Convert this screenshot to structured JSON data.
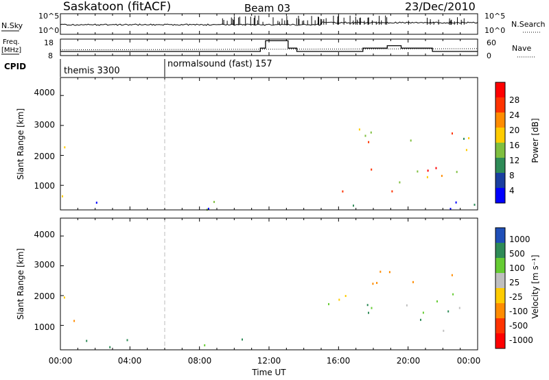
{
  "header": {
    "station": "Saskatoon (fitACF)",
    "beam": "Beam 03",
    "date": "23/Dec/2010"
  },
  "noise_panel": {
    "left_label": "N.Sky",
    "left_ticks": [
      "10^5",
      "10^0"
    ],
    "right_ticks": [
      "10^5",
      "10^0"
    ],
    "right_label": "N.Search"
  },
  "freq_panel": {
    "left_label_line1": "Freq.",
    "left_label_line2": "[MHz]",
    "left_ticks": [
      "18",
      "8"
    ],
    "right_ticks": [
      "60",
      "0"
    ],
    "right_label": "Nave"
  },
  "cpid": {
    "label": "CPID",
    "segments": [
      {
        "name": "themis 3300",
        "start_hour": 0
      },
      {
        "name": "normalsound (fast) 157",
        "start_hour": 6
      }
    ]
  },
  "power_panel": {
    "ylabel": "Slant Range [km]",
    "yticks": [
      "4000",
      "3000",
      "2000",
      "1000"
    ],
    "colorbar_label": "Power [dB]",
    "colorbar_ticks": [
      "28",
      "24",
      "20",
      "16",
      "12",
      "8",
      "4"
    ],
    "colors": [
      "#0000ff",
      "#1a3fa0",
      "#2e8b57",
      "#7fbf3f",
      "#ffcc00",
      "#ff8c00",
      "#ff3300",
      "#ff0000"
    ]
  },
  "velocity_panel": {
    "ylabel": "Slant Range [km]",
    "yticks": [
      "4000",
      "3000",
      "2000",
      "1000"
    ],
    "colorbar_label": "Velocity [m s⁻¹]",
    "colorbar_ticks": [
      "1000",
      "500",
      "100",
      "25",
      "-25",
      "-100",
      "-500",
      "-1000"
    ],
    "colors": [
      "#1f4fb8",
      "#2e8b57",
      "#66cc33",
      "#bfbfbf",
      "#ffcc00",
      "#ff8c00",
      "#ff3300",
      "#ff0000"
    ]
  },
  "xaxis": {
    "ticks": [
      "00:00",
      "04:00",
      "08:00",
      "12:00",
      "16:00",
      "20:00",
      "00:00"
    ],
    "label": "Time UT"
  },
  "chart_data": {
    "type": "heatmap",
    "x_unit": "hour UT",
    "xlim": [
      0,
      24
    ],
    "range_ylim_km": [
      180,
      4600
    ],
    "power_clim_db": [
      0,
      32
    ],
    "velocity_clim_ms": [
      -1000,
      1000
    ],
    "freq_mhz": [
      {
        "start": 0,
        "end": 6,
        "value": 10.5
      },
      {
        "start": 6,
        "end": 11.5,
        "value": 10.5
      },
      {
        "start": 11.5,
        "end": 11.8,
        "value": 12.5
      },
      {
        "start": 11.8,
        "end": 13.1,
        "value": 17
      },
      {
        "start": 13.1,
        "end": 13.6,
        "value": 12.5
      },
      {
        "start": 13.6,
        "end": 17.4,
        "value": 10.5
      },
      {
        "start": 17.4,
        "end": 18.8,
        "value": 12.5
      },
      {
        "start": 18.8,
        "end": 19.6,
        "value": 14
      },
      {
        "start": 19.6,
        "end": 21.4,
        "value": 12.5
      },
      {
        "start": 21.4,
        "end": 24,
        "value": 10.5
      }
    ],
    "power_echo_regions": [
      {
        "t_start": 0,
        "t_end": 1,
        "range_start": 600,
        "range_end": 2600,
        "db": 24
      },
      {
        "t_start": 0,
        "t_end": 11.6,
        "range_start": 200,
        "range_end": 500,
        "db": 8
      },
      {
        "t_start": 10.6,
        "t_end": 11.6,
        "range_start": 650,
        "range_end": 900,
        "db": 16
      },
      {
        "t_start": 15.2,
        "t_end": 24,
        "range_start": 800,
        "range_end": 1800,
        "db": 24
      },
      {
        "t_start": 15.6,
        "t_end": 23.6,
        "range_start": 1900,
        "range_end": 2900,
        "db": 20
      },
      {
        "t_start": 13,
        "t_end": 24,
        "range_start": 200,
        "range_end": 500,
        "db": 8
      }
    ],
    "velocity_echo_regions": [
      {
        "t_start": 0,
        "t_end": 1,
        "range_start": 600,
        "range_end": 2600,
        "ms": 0
      },
      {
        "t_start": 15.2,
        "t_end": 24,
        "range_start": 800,
        "range_end": 2200,
        "ms": 0
      },
      {
        "t_start": 15.6,
        "t_end": 23.6,
        "range_start": 2200,
        "range_end": 2900,
        "ms": -250
      },
      {
        "t_start": 0,
        "t_end": 11.6,
        "range_start": 200,
        "range_end": 600,
        "ms": 200
      }
    ]
  }
}
